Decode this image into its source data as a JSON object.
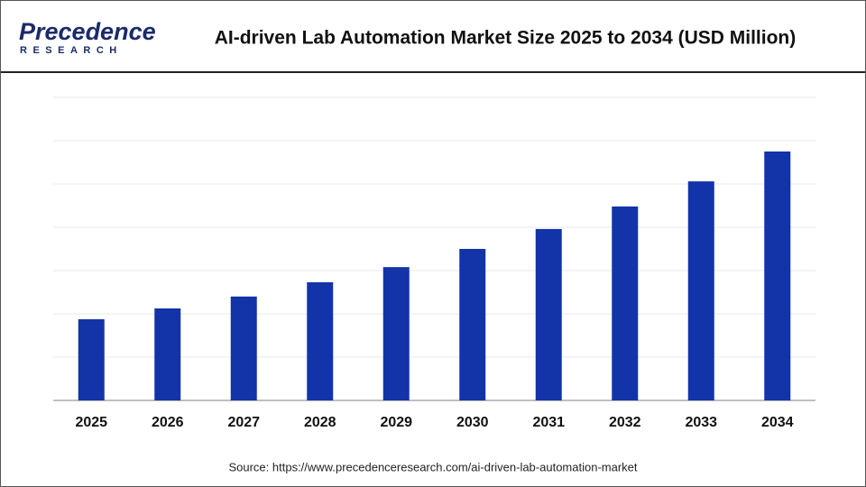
{
  "logo": {
    "name": "Precedence",
    "tagline": "RESEARCH"
  },
  "chart_data": {
    "type": "bar",
    "title": "AI-driven Lab Automation Market Size 2025 to 2034 (USD Million)",
    "categories": [
      "2025",
      "2026",
      "2027",
      "2028",
      "2029",
      "2030",
      "2031",
      "2032",
      "2033",
      "2034"
    ],
    "values": [
      1.875,
      2.125,
      2.4,
      2.73,
      3.08,
      3.5,
      3.96,
      4.48,
      5.06,
      5.75
    ],
    "color": "#1234a8",
    "ylim": [
      0,
      7
    ],
    "yticks": [
      0,
      1,
      2,
      3,
      4,
      5,
      6,
      7
    ],
    "grid": true,
    "source": "Source: https://www.precedenceresearch.com/ai-driven-lab-automation-market"
  }
}
